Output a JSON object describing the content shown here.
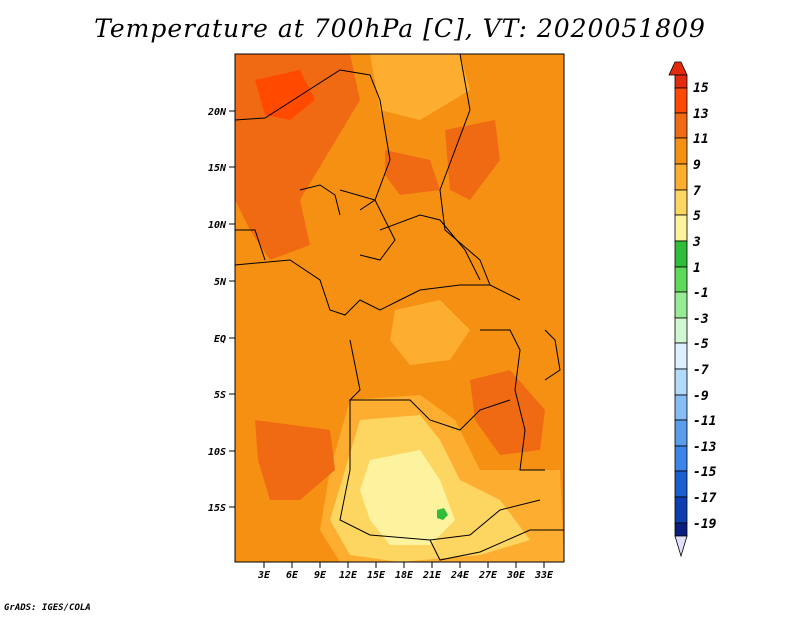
{
  "title": "Temperature at 700hPa [C], VT: 2020051809",
  "credit": "GrADS: IGES/COLA",
  "map": {
    "y_ticks": [
      "20N",
      "15N",
      "10N",
      "5N",
      "EQ",
      "5S",
      "10S",
      "15S"
    ],
    "x_ticks": [
      "3E",
      "6E",
      "9E",
      "12E",
      "15E",
      "18E",
      "21E",
      "24E",
      "27E",
      "30E",
      "33E"
    ]
  },
  "colorbar": {
    "labels": [
      "15",
      "13",
      "11",
      "9",
      "7",
      "5",
      "3",
      "1",
      "-1",
      "-3",
      "-5",
      "-7",
      "-9",
      "-11",
      "-13",
      "-15",
      "-17",
      "-19"
    ],
    "colors": [
      "#e32a0d",
      "#ff4a00",
      "#f06a14",
      "#f59013",
      "#fdae30",
      "#fdd561",
      "#fdf39f",
      "#2fbd3b",
      "#5fd95c",
      "#96eb94",
      "#d0f6d2",
      "#dcefff",
      "#b1dafb",
      "#86bdf5",
      "#5a9deb",
      "#3a84ea",
      "#1b5ed0",
      "#0d3fb0",
      "#0a1e80",
      "#e0e0fb"
    ]
  },
  "legend_colors": {
    "c11_13": "#f06a14",
    "c9_11": "#f59013",
    "c7_9": "#fdae30",
    "c5_7": "#fdd561",
    "c3_5": "#fdf39f",
    "c1_3": "#2fbd3b"
  }
}
